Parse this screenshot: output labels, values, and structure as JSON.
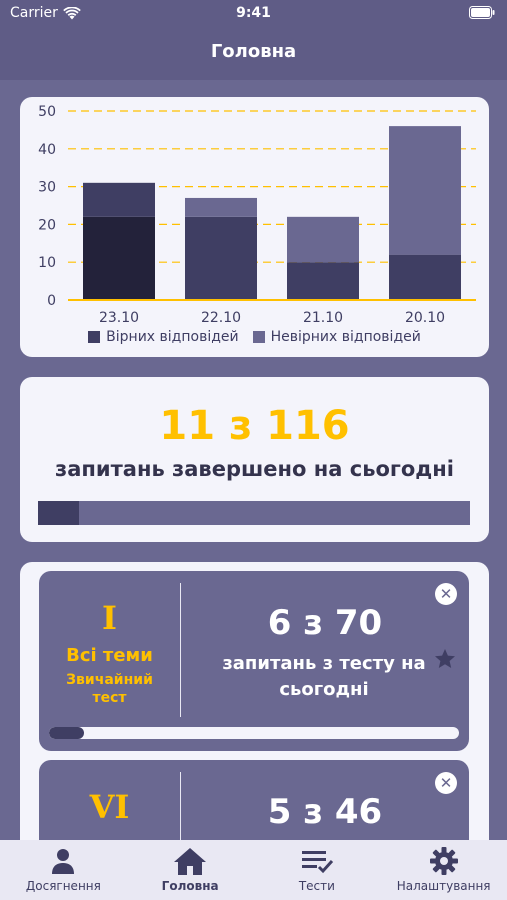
{
  "status_bar": {
    "carrier": "Carrier",
    "time": "9:41"
  },
  "header": {
    "title": "Головна"
  },
  "chart_data": {
    "type": "bar",
    "stacked": true,
    "categories": [
      "23.10",
      "22.10",
      "21.10",
      "20.10"
    ],
    "series": [
      {
        "name": "Вірних відповідей",
        "values": [
          22,
          22,
          10,
          12
        ],
        "color": "#3f3e63"
      },
      {
        "name": "Невірних відповідей",
        "values": [
          9,
          5,
          12,
          34
        ],
        "color": "#6a6891"
      }
    ],
    "first_bar_colors": [
      "#23223a",
      "#3f3e63"
    ],
    "ylim": [
      0,
      50
    ],
    "yticks": [
      0,
      10,
      20,
      30,
      40,
      50
    ],
    "grid": true,
    "grid_color": "#ffc000",
    "legend_position": "bottom"
  },
  "daily_progress": {
    "count_text": "11 з 116",
    "caption": "запитань завершено на сьогодні",
    "fraction": 0.095
  },
  "tests": [
    {
      "roman": "I",
      "theme": "Всі теми",
      "type": "Звичайний тест",
      "count_text": "6 з 70",
      "caption": "запитань з тесту на сьогодні",
      "fraction": 0.086,
      "close_symbol": "✕"
    },
    {
      "roman": "VI",
      "count_text": "5 з 46",
      "close_symbol": "✕"
    }
  ],
  "tab_bar": {
    "items": [
      {
        "label": "Досягнення",
        "icon": "person-icon"
      },
      {
        "label": "Головна",
        "icon": "home-icon",
        "active": true
      },
      {
        "label": "Тести",
        "icon": "checklist-icon"
      },
      {
        "label": "Налаштування",
        "icon": "gear-icon"
      }
    ]
  },
  "colors": {
    "accent": "#ffc000",
    "primary_dark": "#3f3e63",
    "primary": "#6a6891",
    "card": "#f4f4fb"
  }
}
